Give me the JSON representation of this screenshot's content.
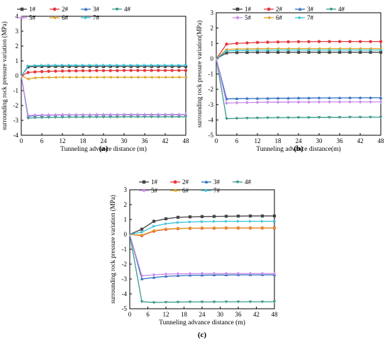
{
  "figure": {
    "series_colors": [
      "#444444",
      "#e8383d",
      "#2e6fc0",
      "#3a9a8a",
      "#c88be8",
      "#e2a020",
      "#36c4d8"
    ],
    "series_markers": [
      "square",
      "circle",
      "triangle-up",
      "triangle-down",
      "diamond",
      "triangle-left",
      "triangle-right"
    ]
  },
  "chart_data": [
    {
      "panel_label": "(a)",
      "type": "line",
      "ylabel": "surrounding rock pressure variation (MPa)",
      "xlabel": "Tunneling advance distance (m)",
      "xlim": [
        0,
        48
      ],
      "ylim": [
        -4,
        4
      ],
      "xticks": [
        "0",
        "6",
        "12",
        "18",
        "24",
        "30",
        "36",
        "42",
        "48"
      ],
      "yticks": [
        "-4",
        "-3",
        "-2",
        "-1",
        "0",
        "1",
        "2",
        "3",
        "4"
      ],
      "x": [
        0,
        2,
        4,
        6,
        8,
        10,
        12,
        14,
        16,
        18,
        20,
        22,
        24,
        26,
        28,
        30,
        32,
        34,
        36,
        38,
        40,
        42,
        44,
        46,
        48
      ],
      "legend": [
        "1#",
        "2#",
        "3#",
        "4#",
        "5#",
        "6#",
        "7#"
      ],
      "series": [
        {
          "name": "1#",
          "values": [
            0,
            0.6,
            0.62,
            0.63,
            0.63,
            0.63,
            0.63,
            0.63,
            0.63,
            0.63,
            0.63,
            0.63,
            0.63,
            0.63,
            0.63,
            0.63,
            0.63,
            0.63,
            0.63,
            0.63,
            0.63,
            0.63,
            0.63,
            0.63,
            0.63
          ]
        },
        {
          "name": "2#",
          "values": [
            0,
            0.22,
            0.26,
            0.28,
            0.3,
            0.31,
            0.32,
            0.33,
            0.33,
            0.34,
            0.34,
            0.35,
            0.35,
            0.35,
            0.35,
            0.36,
            0.36,
            0.36,
            0.36,
            0.36,
            0.36,
            0.36,
            0.36,
            0.36,
            0.36
          ]
        },
        {
          "name": "3#",
          "values": [
            0,
            -2.72,
            -2.68,
            -2.66,
            -2.65,
            -2.64,
            -2.63,
            -2.63,
            -2.62,
            -2.62,
            -2.62,
            -2.61,
            -2.61,
            -2.61,
            -2.61,
            -2.6,
            -2.6,
            -2.6,
            -2.6,
            -2.6,
            -2.6,
            -2.6,
            -2.6,
            -2.6,
            -2.6
          ]
        },
        {
          "name": "4#",
          "values": [
            0,
            -2.85,
            -2.82,
            -2.81,
            -2.8,
            -2.79,
            -2.79,
            -2.78,
            -2.78,
            -2.78,
            -2.77,
            -2.77,
            -2.77,
            -2.77,
            -2.77,
            -2.76,
            -2.76,
            -2.76,
            -2.76,
            -2.76,
            -2.76,
            -2.76,
            -2.76,
            -2.76,
            -2.76
          ]
        },
        {
          "name": "5#",
          "values": [
            0,
            -2.68,
            -2.65,
            -2.64,
            -2.63,
            -2.63,
            -2.62,
            -2.62,
            -2.62,
            -2.62,
            -2.62,
            -2.62,
            -2.62,
            -2.62,
            -2.62,
            -2.62,
            -2.62,
            -2.62,
            -2.62,
            -2.62,
            -2.62,
            -2.62,
            -2.62,
            -2.62,
            -2.62
          ]
        },
        {
          "name": "6#",
          "values": [
            0,
            -0.22,
            -0.14,
            -0.12,
            -0.11,
            -0.11,
            -0.1,
            -0.1,
            -0.1,
            -0.1,
            -0.1,
            -0.1,
            -0.1,
            -0.1,
            -0.1,
            -0.1,
            -0.1,
            -0.1,
            -0.1,
            -0.1,
            -0.1,
            -0.1,
            -0.1,
            -0.1,
            -0.1
          ]
        },
        {
          "name": "7#",
          "values": [
            0,
            0.66,
            0.69,
            0.7,
            0.71,
            0.71,
            0.71,
            0.71,
            0.71,
            0.71,
            0.71,
            0.71,
            0.71,
            0.71,
            0.71,
            0.71,
            0.71,
            0.71,
            0.71,
            0.71,
            0.71,
            0.71,
            0.71,
            0.71,
            0.71
          ]
        }
      ]
    },
    {
      "panel_label": "(b)",
      "type": "line",
      "ylabel": "surrounding rock pressure variation(MPa)",
      "xlabel": "Tunneling advance distance(m)",
      "xlim": [
        0,
        48
      ],
      "ylim": [
        -5,
        3
      ],
      "xticks": [
        "0",
        "6",
        "12",
        "18",
        "24",
        "30",
        "36",
        "42",
        "48"
      ],
      "yticks": [
        "-5",
        "-4",
        "-3",
        "-2",
        "-1",
        "0",
        "1",
        "2",
        "3"
      ],
      "x": [
        0,
        3,
        6,
        9,
        12,
        15,
        18,
        21,
        24,
        27,
        30,
        33,
        36,
        39,
        42,
        45,
        48
      ],
      "legend": [
        "1#",
        "2#",
        "3#",
        "4#",
        "5#",
        "6#",
        "7#"
      ],
      "series": [
        {
          "name": "1#",
          "values": [
            0,
            0.38,
            0.4,
            0.41,
            0.42,
            0.42,
            0.42,
            0.42,
            0.42,
            0.42,
            0.42,
            0.42,
            0.42,
            0.42,
            0.42,
            0.42,
            0.42
          ]
        },
        {
          "name": "2#",
          "values": [
            0,
            0.95,
            1.0,
            1.03,
            1.06,
            1.08,
            1.09,
            1.1,
            1.11,
            1.11,
            1.12,
            1.12,
            1.12,
            1.12,
            1.12,
            1.12,
            1.12
          ]
        },
        {
          "name": "3#",
          "values": [
            0,
            -2.62,
            -2.61,
            -2.6,
            -2.6,
            -2.59,
            -2.58,
            -2.58,
            -2.57,
            -2.57,
            -2.56,
            -2.56,
            -2.56,
            -2.55,
            -2.55,
            -2.55,
            -2.55
          ]
        },
        {
          "name": "4#",
          "values": [
            0,
            -3.92,
            -3.9,
            -3.88,
            -3.87,
            -3.86,
            -3.85,
            -3.85,
            -3.84,
            -3.84,
            -3.83,
            -3.83,
            -3.83,
            -3.82,
            -3.82,
            -3.82,
            -3.82
          ]
        },
        {
          "name": "5#",
          "values": [
            0,
            -2.9,
            -2.88,
            -2.86,
            -2.85,
            -2.84,
            -2.84,
            -2.83,
            -2.83,
            -2.83,
            -2.82,
            -2.82,
            -2.82,
            -2.82,
            -2.82,
            -2.82,
            -2.82
          ]
        },
        {
          "name": "6#",
          "values": [
            0,
            0.6,
            0.63,
            0.64,
            0.65,
            0.66,
            0.66,
            0.66,
            0.66,
            0.66,
            0.66,
            0.66,
            0.66,
            0.66,
            0.66,
            0.66,
            0.66
          ]
        },
        {
          "name": "7#",
          "values": [
            0,
            0.5,
            0.53,
            0.54,
            0.55,
            0.55,
            0.56,
            0.56,
            0.56,
            0.56,
            0.56,
            0.56,
            0.56,
            0.56,
            0.56,
            0.56,
            0.56
          ]
        }
      ]
    },
    {
      "panel_label": "(c)",
      "type": "line",
      "ylabel": "surrounding rock pressure variation (MPa)",
      "xlabel": "Tunneling advance distance (m)",
      "xlim": [
        0,
        48
      ],
      "ylim": [
        -5,
        3
      ],
      "xticks": [
        "0",
        "6",
        "12",
        "18",
        "24",
        "30",
        "36",
        "42",
        "48"
      ],
      "yticks": [
        "-5",
        "-4",
        "-3",
        "-2",
        "-1",
        "0",
        "1",
        "2",
        "3"
      ],
      "x": [
        0,
        4,
        8,
        12,
        16,
        20,
        24,
        28,
        32,
        36,
        40,
        44,
        48
      ],
      "legend": [
        "1#",
        "2#",
        "3#",
        "4#",
        "5#",
        "6#",
        "7#"
      ],
      "series": [
        {
          "name": "1#",
          "values": [
            0,
            0.35,
            0.88,
            1.05,
            1.15,
            1.18,
            1.2,
            1.21,
            1.22,
            1.23,
            1.24,
            1.24,
            1.24
          ]
        },
        {
          "name": "2#",
          "values": [
            0,
            -0.08,
            0.22,
            0.34,
            0.39,
            0.41,
            0.42,
            0.42,
            0.43,
            0.43,
            0.43,
            0.43,
            0.43
          ]
        },
        {
          "name": "3#",
          "values": [
            0,
            -3.0,
            -2.9,
            -2.82,
            -2.78,
            -2.75,
            -2.74,
            -2.73,
            -2.73,
            -2.72,
            -2.72,
            -2.72,
            -2.72
          ]
        },
        {
          "name": "4#",
          "values": [
            0,
            -4.52,
            -4.58,
            -4.56,
            -4.55,
            -4.54,
            -4.54,
            -4.54,
            -4.53,
            -4.53,
            -4.53,
            -4.53,
            -4.53
          ]
        },
        {
          "name": "5#",
          "values": [
            0,
            -2.78,
            -2.72,
            -2.67,
            -2.65,
            -2.64,
            -2.63,
            -2.63,
            -2.63,
            -2.63,
            -2.63,
            -2.63,
            -2.63
          ]
        },
        {
          "name": "6#",
          "values": [
            0,
            -0.05,
            0.25,
            0.36,
            0.4,
            0.42,
            0.43,
            0.43,
            0.44,
            0.44,
            0.44,
            0.44,
            0.44
          ]
        },
        {
          "name": "7#",
          "values": [
            0,
            0.15,
            0.55,
            0.72,
            0.8,
            0.84,
            0.86,
            0.87,
            0.88,
            0.88,
            0.88,
            0.88,
            0.88
          ]
        }
      ]
    }
  ]
}
